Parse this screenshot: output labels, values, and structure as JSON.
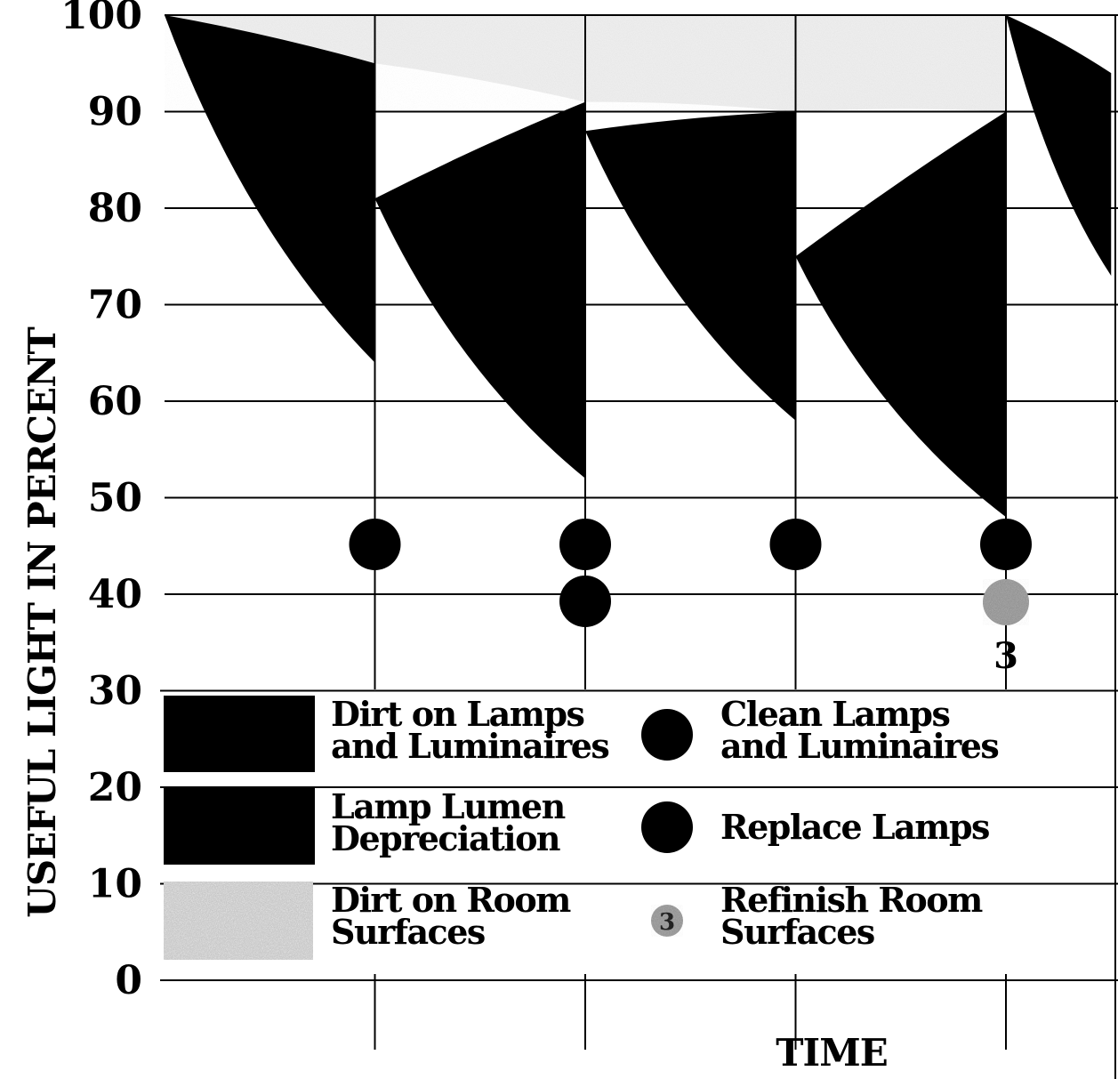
{
  "chart_data": {
    "type": "area",
    "xlabel": "TIME",
    "ylabel": "USEFUL LIGHT IN PERCENT",
    "ylim": [
      0,
      100
    ],
    "yticks": [
      "100",
      "90",
      "80",
      "70",
      "60",
      "50",
      "40",
      "30",
      "20",
      "10",
      "0"
    ],
    "grid": true,
    "colors": {
      "lamp_dirt": "#000000",
      "lumen_depreciation": "#000000",
      "room_dirt": "#d9d9d9",
      "refinish_marker": "#8a8a8a"
    },
    "series": [
      {
        "name": "Dirt on Room Surfaces",
        "x": [
          0,
          1,
          2,
          3,
          4
        ],
        "top": [
          100,
          100,
          100,
          100,
          100
        ],
        "bottom": [
          100,
          95,
          91,
          90,
          90
        ]
      },
      {
        "name": "Lamp Lumen Depreciation",
        "segments": [
          {
            "x": [
              0,
              1
            ],
            "top": [
              100,
              95
            ],
            "bottom": [
              100,
              64
            ]
          },
          {
            "x": [
              1,
              2
            ],
            "top": [
              81,
              91
            ],
            "bottom": [
              81,
              52
            ]
          },
          {
            "x": [
              2,
              3
            ],
            "top": [
              88,
              90
            ],
            "bottom": [
              88,
              58
            ]
          },
          {
            "x": [
              3,
              4
            ],
            "top": [
              75,
              90
            ],
            "bottom": [
              75,
              48
            ]
          },
          {
            "x": [
              4,
              4.5
            ],
            "top": [
              100,
              94
            ],
            "bottom": [
              100,
              73
            ]
          }
        ]
      }
    ],
    "events": [
      {
        "x": 1,
        "actions": [
          "Clean Lamps and Luminaires"
        ]
      },
      {
        "x": 2,
        "actions": [
          "Clean Lamps and Luminaires",
          "Replace Lamps"
        ]
      },
      {
        "x": 3,
        "actions": [
          "Clean Lamps and Luminaires"
        ]
      },
      {
        "x": 4,
        "actions": [
          "Clean Lamps and Luminaires",
          "Refinish Room Surfaces"
        ],
        "label": "3"
      }
    ],
    "legend": {
      "placement": "bottom",
      "fills": [
        {
          "lines": [
            "Dirt on Lamps",
            "and Luminaires"
          ],
          "swatch": "solid"
        },
        {
          "lines": [
            "Lamp Lumen",
            "Depreciation"
          ],
          "swatch": "solid"
        },
        {
          "lines": [
            "Dirt on Room",
            "Surfaces"
          ],
          "swatch": "speckle"
        }
      ],
      "markers": [
        {
          "lines": [
            "Clean Lamps",
            "and Luminaires"
          ],
          "marker": "circle"
        },
        {
          "lines": [
            "Replace Lamps"
          ],
          "marker": "circle"
        },
        {
          "lines": [
            "Refinish Room",
            "Surfaces"
          ],
          "marker": "speckle-circle",
          "label": "3"
        }
      ]
    }
  }
}
